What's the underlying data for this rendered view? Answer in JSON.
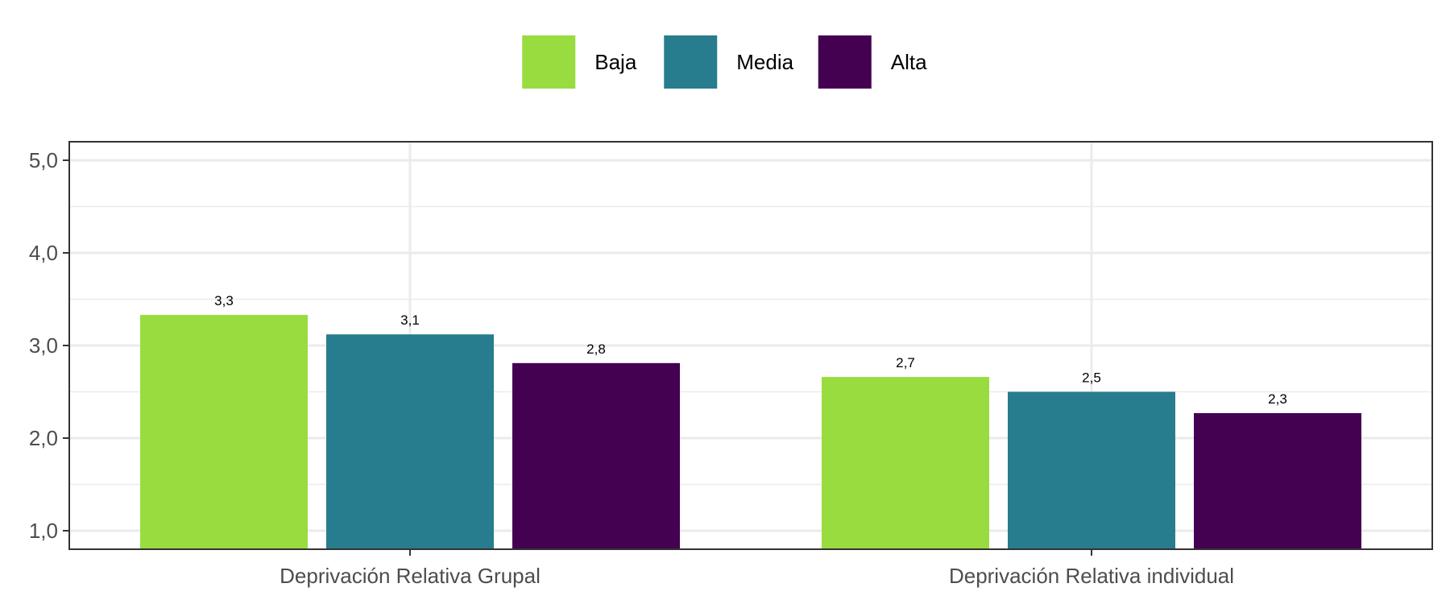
{
  "chart_data": {
    "type": "bar",
    "categories": [
      "Deprivación Relativa Grupal",
      "Deprivación Relativa individual"
    ],
    "series": [
      {
        "name": "Baja",
        "color": "#99dc3f",
        "values": [
          3.33,
          2.66
        ],
        "labels": [
          "3,3",
          "2,7"
        ]
      },
      {
        "name": "Media",
        "color": "#277d8e",
        "values": [
          3.12,
          2.5
        ],
        "labels": [
          "3,1",
          "2,5"
        ]
      },
      {
        "name": "Alta",
        "color": "#450151",
        "values": [
          2.81,
          2.27
        ],
        "labels": [
          "2,8",
          "2,3"
        ]
      }
    ],
    "yticks": [
      1,
      2,
      3,
      4,
      5
    ],
    "ytick_labels": [
      "1,0",
      "2,0",
      "3,0",
      "4,0",
      "5,0"
    ],
    "ylim": [
      0.8,
      5.2
    ],
    "legend_position": "top",
    "grid": true
  }
}
